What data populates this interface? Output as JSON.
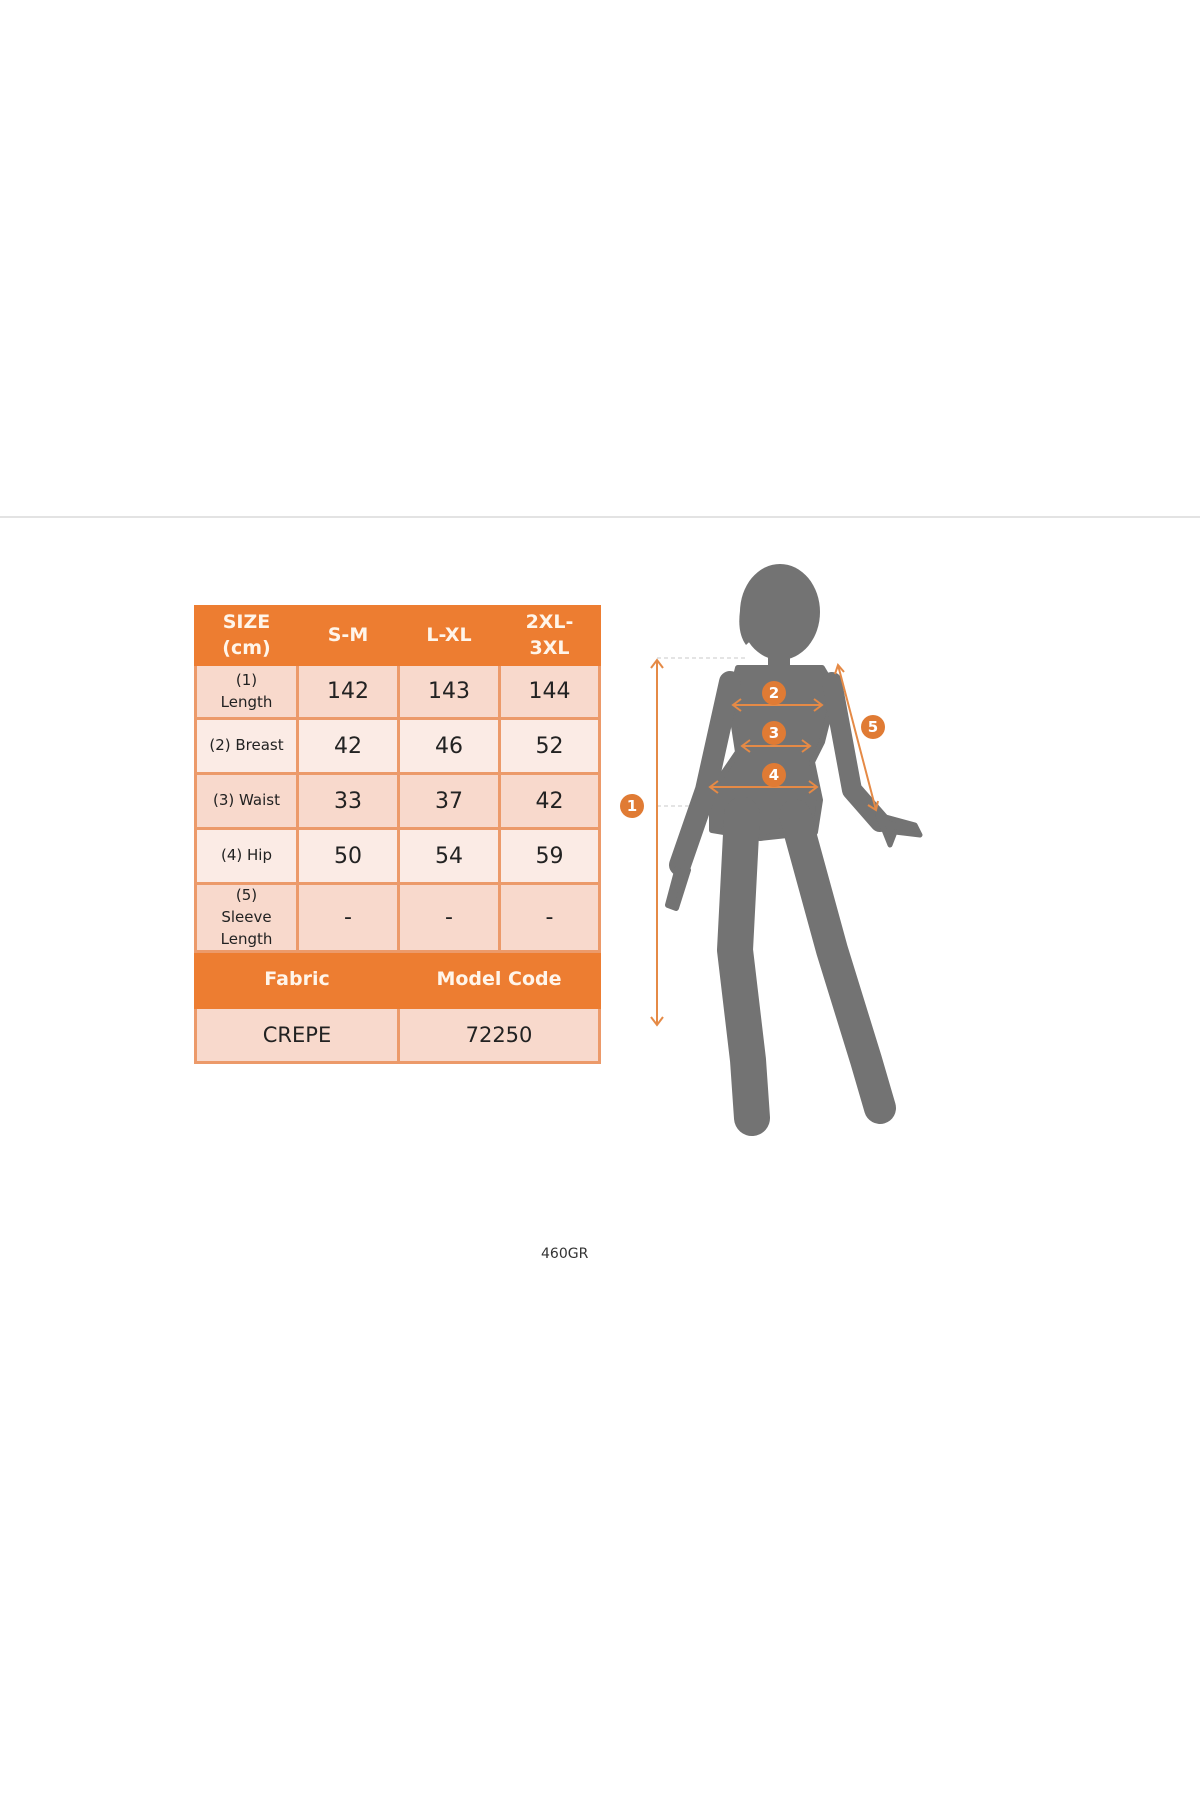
{
  "table": {
    "header": [
      "SIZE (cm)",
      "S-M",
      "L-XL",
      "2XL-3XL"
    ],
    "header_lines": [
      [
        "SIZE",
        "(cm)"
      ],
      [
        "S-M"
      ],
      [
        "L-XL"
      ],
      [
        "2XL-",
        "3XL"
      ]
    ],
    "rows": [
      {
        "label_lines": [
          "(1)",
          "Length"
        ],
        "label": "(1) Length",
        "values": [
          "142",
          "143",
          "144"
        ]
      },
      {
        "label_lines": [
          "(2) Breast"
        ],
        "label": "(2) Breast",
        "values": [
          "42",
          "46",
          "52"
        ]
      },
      {
        "label_lines": [
          "(3) Waist"
        ],
        "label": "(3) Waist",
        "values": [
          "33",
          "37",
          "42"
        ]
      },
      {
        "label_lines": [
          "(4) Hip"
        ],
        "label": "(4) Hip",
        "values": [
          "50",
          "54",
          "59"
        ]
      },
      {
        "label_lines": [
          "(5)",
          "Sleeve",
          "Length"
        ],
        "label": "(5) Sleeve Length",
        "values": [
          "-",
          "-",
          "-"
        ]
      }
    ],
    "footer_headers": [
      "Fabric",
      "Model Code"
    ],
    "footer_values": [
      "CREPE",
      "72250"
    ]
  },
  "product_code": "460GR",
  "figure": {
    "markers": [
      "1",
      "2",
      "3",
      "4",
      "5"
    ]
  },
  "colors": {
    "accent": "#ED7D31",
    "cell_pink": "#F8D9CC",
    "cell_light": "#FBEBE5",
    "silhouette": "#737373"
  }
}
